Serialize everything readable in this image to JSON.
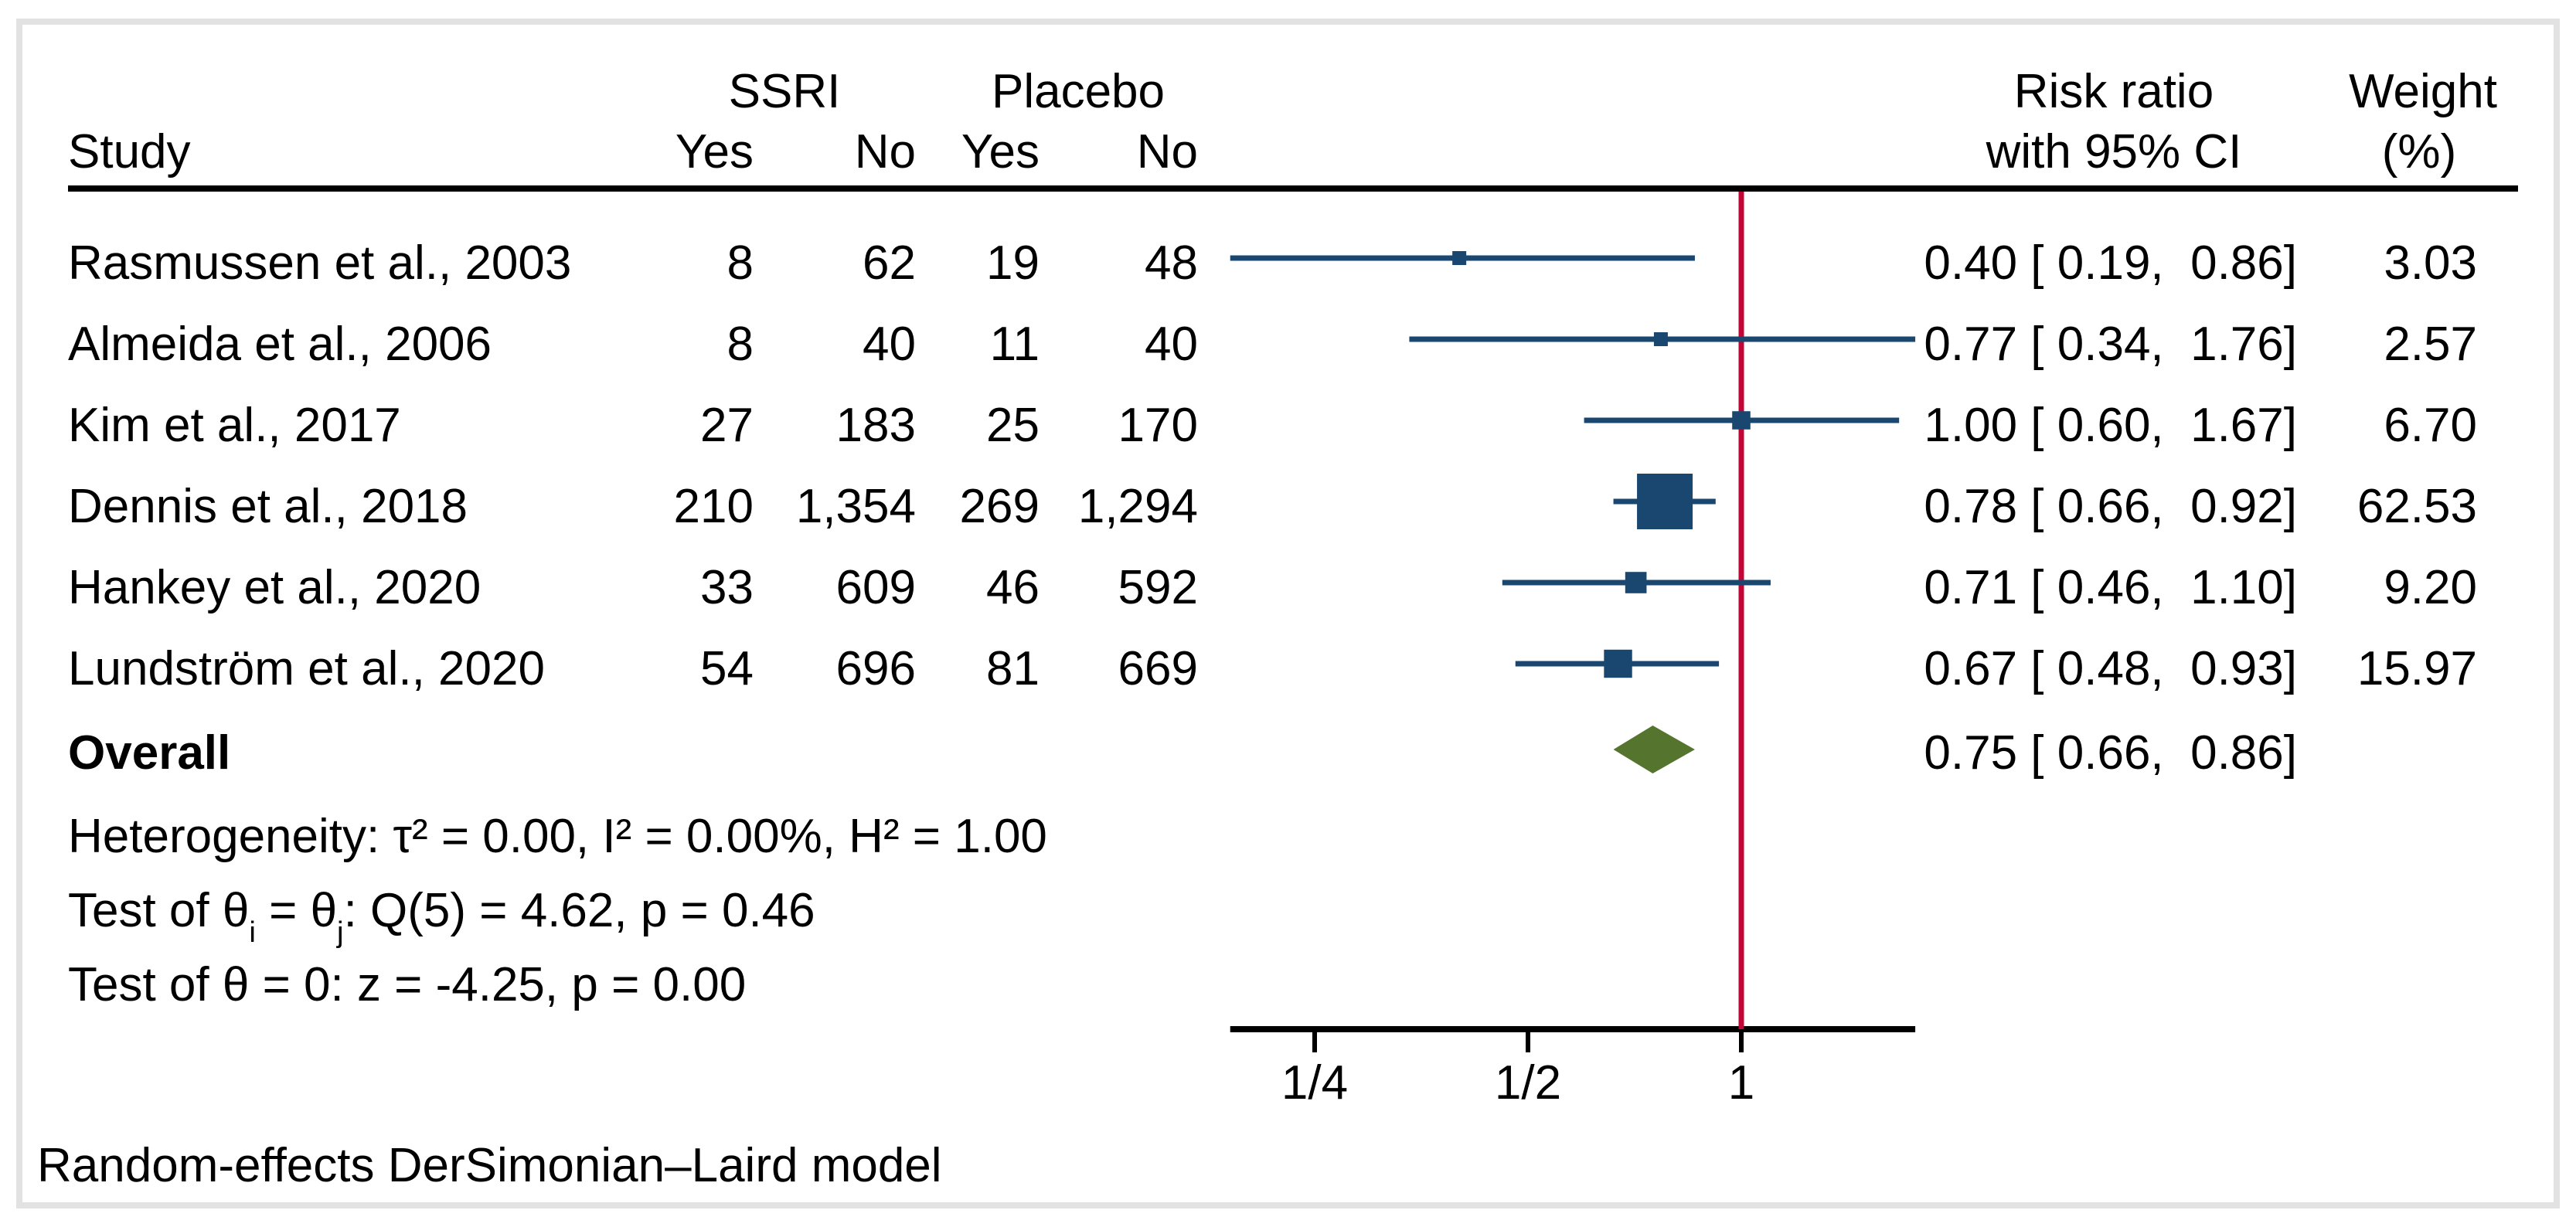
{
  "header": {
    "study": "Study",
    "group1": "SSRI",
    "group2": "Placebo",
    "col1_yes": "Yes",
    "col1_no": "No",
    "col2_yes": "Yes",
    "col2_no": "No",
    "rr_line1": "Risk ratio",
    "rr_line2": "with 95% CI",
    "weight_line1": "Weight",
    "weight_line2": "(%)"
  },
  "overall": {
    "label": "Overall",
    "rr_text": "0.75 [ 0.66,  0.86]"
  },
  "stats": {
    "heterogeneity": "Heterogeneity: τ² = 0.00, I² = 0.00%, H² = 1.00",
    "test_pre": "Test of θ",
    "test_sub1": "i",
    "test_mid": " = θ",
    "test_sub2": "j",
    "test_post": ": Q(5) = 4.62, p = 0.46",
    "test_zero": "Test of θ = 0: z = -4.25, p = 0.00"
  },
  "note": "Random-effects DerSimonian–Laird model",
  "chart_data": {
    "type": "forest",
    "effect_measure": "Risk ratio",
    "model": "Random-effects DerSimonian–Laird",
    "scale": "log",
    "ref_line": 1,
    "xlim": [
      0.19,
      1.76
    ],
    "x_ticks": [
      {
        "value": 0.25,
        "label": "1/4"
      },
      {
        "value": 0.5,
        "label": "1/2"
      },
      {
        "value": 1,
        "label": "1"
      }
    ],
    "studies": [
      {
        "label": "Rasmussen et al., 2003",
        "ssri_yes": "8",
        "ssri_no": "62",
        "placebo_yes": "19",
        "placebo_no": "48",
        "estimate": 0.4,
        "ci_low": 0.19,
        "ci_high": 0.86,
        "rr_text": "0.40 [ 0.19,  0.86]",
        "weight": 3.03,
        "weight_text": "3.03"
      },
      {
        "label": "Almeida et al., 2006",
        "ssri_yes": "8",
        "ssri_no": "40",
        "placebo_yes": "11",
        "placebo_no": "40",
        "estimate": 0.77,
        "ci_low": 0.34,
        "ci_high": 1.76,
        "rr_text": "0.77 [ 0.34,  1.76]",
        "weight": 2.57,
        "weight_text": "2.57"
      },
      {
        "label": "Kim et al., 2017",
        "ssri_yes": "27",
        "ssri_no": "183",
        "placebo_yes": "25",
        "placebo_no": "170",
        "estimate": 1.0,
        "ci_low": 0.6,
        "ci_high": 1.67,
        "rr_text": "1.00 [ 0.60,  1.67]",
        "weight": 6.7,
        "weight_text": "6.70"
      },
      {
        "label": "Dennis et al., 2018",
        "ssri_yes": "210",
        "ssri_no": "1,354",
        "placebo_yes": "269",
        "placebo_no": "1,294",
        "estimate": 0.78,
        "ci_low": 0.66,
        "ci_high": 0.92,
        "rr_text": "0.78 [ 0.66,  0.92]",
        "weight": 62.53,
        "weight_text": "62.53"
      },
      {
        "label": "Hankey et al., 2020",
        "ssri_yes": "33",
        "ssri_no": "609",
        "placebo_yes": "46",
        "placebo_no": "592",
        "estimate": 0.71,
        "ci_low": 0.46,
        "ci_high": 1.1,
        "rr_text": "0.71 [ 0.46,  1.10]",
        "weight": 9.2,
        "weight_text": "9.20"
      },
      {
        "label": "Lundström et al., 2020",
        "ssri_yes": "54",
        "ssri_no": "696",
        "placebo_yes": "81",
        "placebo_no": "669",
        "estimate": 0.67,
        "ci_low": 0.48,
        "ci_high": 0.93,
        "rr_text": "0.67 [ 0.48,  0.93]",
        "weight": 15.97,
        "weight_text": "15.97"
      }
    ],
    "overall": {
      "estimate": 0.75,
      "ci_low": 0.66,
      "ci_high": 0.86
    },
    "colors": {
      "marker": "#1a476f",
      "ci_line": "#1a476f",
      "ref_line": "#c10534",
      "diamond": "#55752f",
      "rule": "#000000",
      "frame": "#e2e2e2"
    }
  }
}
